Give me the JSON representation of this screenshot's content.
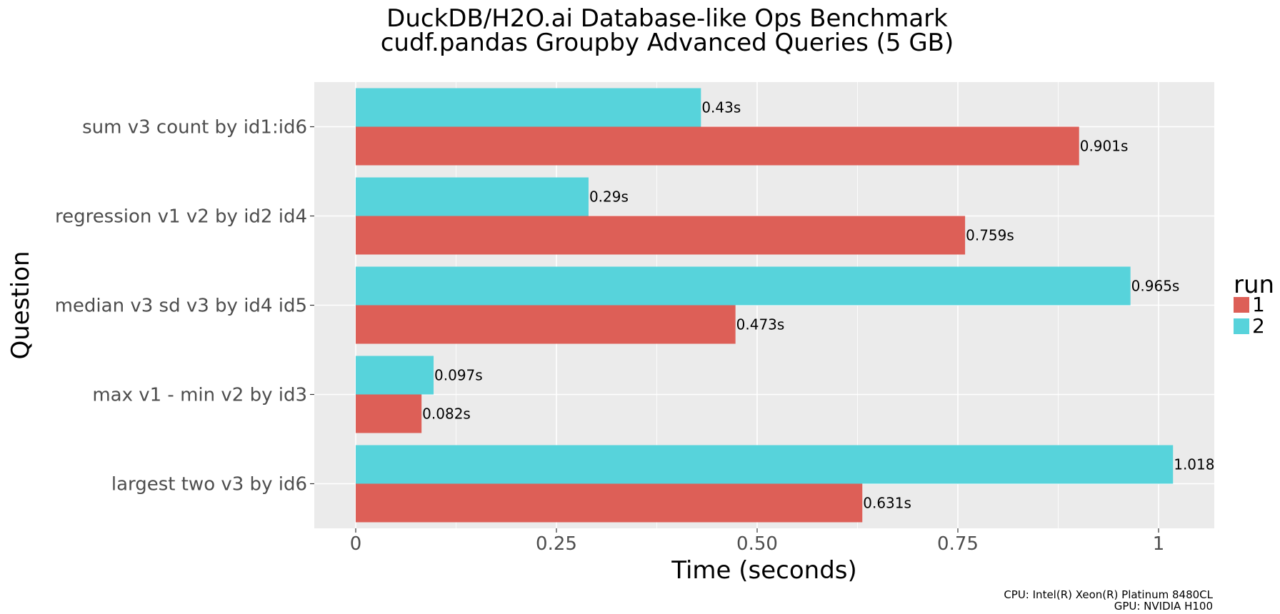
{
  "chart_data": {
    "type": "bar",
    "orientation": "horizontal",
    "title": "DuckDB/H2O.ai Database-like Ops Benchmark",
    "subtitle": "cudf.pandas Groupby Advanced Queries (5 GB)",
    "xlabel": "Time (seconds)",
    "ylabel": "Question",
    "xlim": [
      -0.025,
      1.045
    ],
    "xticks": [
      0,
      0.25,
      0.5,
      0.75,
      1
    ],
    "xtick_labels": [
      "0",
      "0.25",
      "0.50",
      "0.75",
      "1"
    ],
    "grid": true,
    "legend": {
      "title": "run",
      "placement": "right"
    },
    "categories": [
      "sum v3 count by id1:id6",
      "regression v1 v2 by id2 id4",
      "median v3 sd v3 by id4 id5",
      "max v1 - min v2 by id3",
      "largest two v3 by id6"
    ],
    "series": [
      {
        "name": "1",
        "color": "#dd5f57",
        "values": [
          0.901,
          0.759,
          0.473,
          0.082,
          0.631
        ],
        "labels": [
          "0.901s",
          "0.759s",
          "0.473s",
          "0.082s",
          "0.631s"
        ]
      },
      {
        "name": "2",
        "color": "#57d3db",
        "values": [
          0.43,
          0.29,
          0.965,
          0.097,
          1.018
        ],
        "labels": [
          "0.43s",
          "0.29s",
          "0.965s",
          "0.097s",
          "1.018"
        ]
      }
    ]
  },
  "caption": {
    "cpu": "CPU: Intel(R) Xeon(R) Platinum 8480CL",
    "gpu": "GPU: NVIDIA H100"
  }
}
